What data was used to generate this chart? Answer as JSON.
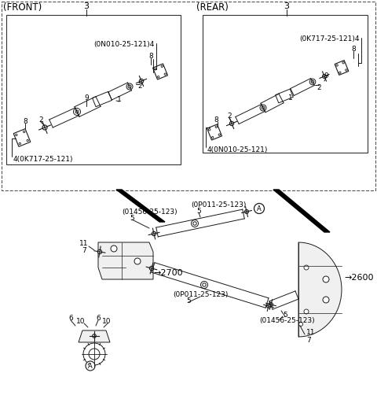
{
  "bg_color": "#ffffff",
  "front_label": "(FRONT)",
  "rear_label": "(REAR)",
  "front_part4a": "(0N010-25-121)4",
  "front_part4b": "4(0K717-25-121)",
  "rear_part4a": "(0K717-25-121)4",
  "rear_part4b": "4(0N010-25-121)",
  "label3": "3",
  "ann_0p011": "(0P011-25-123)",
  "ann_01456_top": "(01456-25-123)",
  "ann_0p011_bot": "(0P011-25-123)",
  "ann_01456_bot": "(01456-25-123)",
  "lbl_2700": "2700",
  "lbl_2600": "2600",
  "fs": 6.5,
  "fs_lbl": 8.0,
  "fs_sec": 8.5
}
